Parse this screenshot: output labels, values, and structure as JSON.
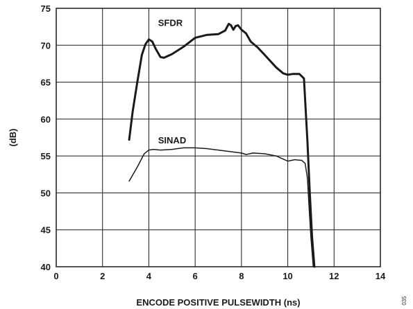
{
  "chart_data": {
    "type": "line",
    "xlabel": "ENCODE POSITIVE PULSEWIDTH (ns)",
    "ylabel": "(dB)",
    "xlim": [
      0,
      14
    ],
    "ylim": [
      40,
      75
    ],
    "xticks": [
      0,
      2,
      4,
      6,
      8,
      10,
      12,
      14
    ],
    "yticks": [
      40,
      45,
      50,
      55,
      60,
      65,
      70,
      75
    ],
    "grid": true,
    "series": [
      {
        "name": "SFDR",
        "stroke_width": 3,
        "x": [
          3.15,
          3.3,
          3.5,
          3.7,
          3.85,
          4.0,
          4.15,
          4.3,
          4.5,
          4.65,
          5.0,
          5.5,
          6.0,
          6.5,
          7.0,
          7.3,
          7.45,
          7.55,
          7.65,
          7.75,
          7.85,
          8.0,
          8.2,
          8.4,
          8.7,
          9.0,
          9.5,
          9.8,
          10.0,
          10.2,
          10.5,
          10.7,
          10.85,
          10.95,
          11.05,
          11.15
        ],
        "y": [
          57.2,
          61.0,
          65.0,
          68.7,
          70.1,
          70.8,
          70.5,
          69.5,
          68.4,
          68.3,
          68.8,
          69.8,
          71.0,
          71.4,
          71.5,
          72.0,
          72.9,
          72.7,
          72.1,
          72.6,
          72.7,
          72.1,
          71.6,
          70.5,
          69.7,
          68.7,
          67.0,
          66.2,
          66.0,
          66.1,
          66.1,
          65.5,
          57.0,
          50.0,
          44.0,
          40.0
        ]
      },
      {
        "name": "SINAD",
        "stroke_width": 1.5,
        "x": [
          3.15,
          3.5,
          3.8,
          4.0,
          4.2,
          4.5,
          5.0,
          5.5,
          6.0,
          6.5,
          7.0,
          7.5,
          8.0,
          8.2,
          8.5,
          9.0,
          9.5,
          10.0,
          10.3,
          10.6,
          10.75,
          10.85,
          10.92,
          11.0,
          11.05,
          11.1
        ],
        "y": [
          51.6,
          53.5,
          55.3,
          55.8,
          55.9,
          55.8,
          55.9,
          56.1,
          56.1,
          56.0,
          55.8,
          55.6,
          55.4,
          55.2,
          55.4,
          55.3,
          55.0,
          54.3,
          54.5,
          54.4,
          54.0,
          52.0,
          48.0,
          44.0,
          42.0,
          40.0
        ]
      }
    ],
    "annotations": [
      {
        "text": "SFDR",
        "x": 4.4,
        "y": 72.6
      },
      {
        "text": "SINAD",
        "x": 4.4,
        "y": 56.7
      }
    ],
    "figure_id": "035"
  }
}
